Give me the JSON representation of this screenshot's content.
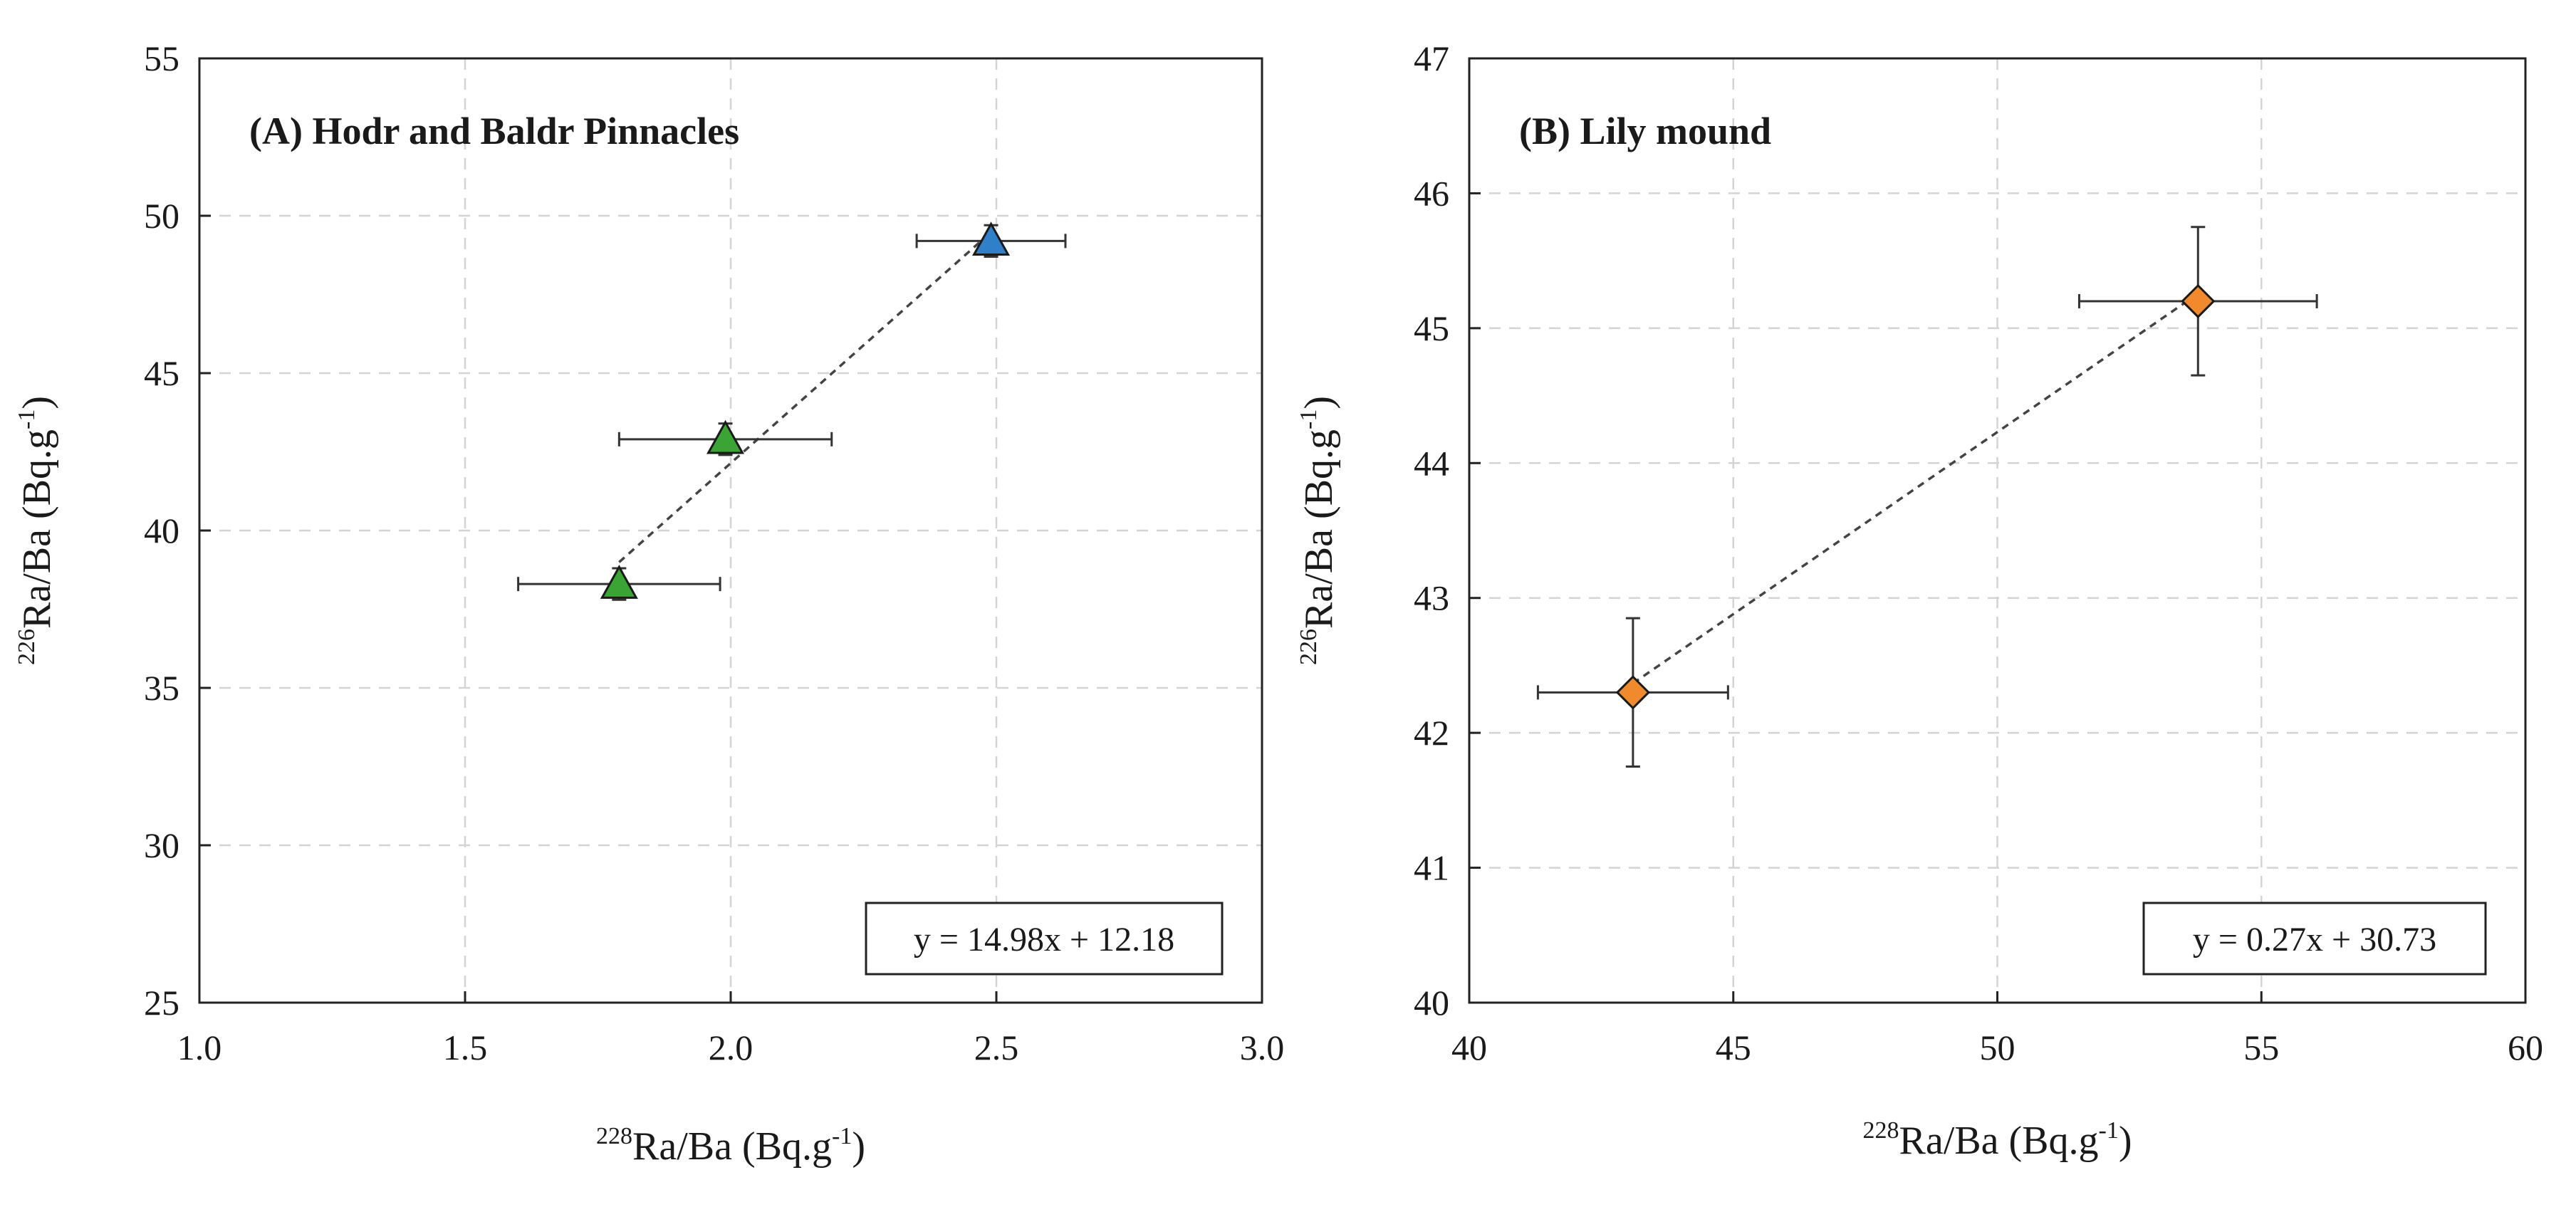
{
  "chart_data": [
    {
      "type": "scatter",
      "title": "(A) Hodr and Baldr Pinnacles",
      "xlabel": {
        "sup": "228",
        "text": "Ra/Ba (Bq.g",
        "exp": "-1",
        "close": ")"
      },
      "ylabel": {
        "sup": "226",
        "text": "Ra/Ba (Bq.g",
        "exp": "-1",
        "close": ")"
      },
      "xlim": [
        1.0,
        3.0
      ],
      "ylim": [
        25,
        55
      ],
      "xticks": [
        "1.0",
        "1.5",
        "2.0",
        "2.5",
        "3.0"
      ],
      "yticks": [
        "25",
        "30",
        "35",
        "40",
        "45",
        "50",
        "55"
      ],
      "grid": true,
      "equation": "y = 14.98x + 12.18",
      "trendline": {
        "slope": 14.98,
        "intercept": 12.18,
        "x_range": [
          1.79,
          2.49
        ]
      },
      "marker": "triangle",
      "points": [
        {
          "x": 1.79,
          "y": 38.3,
          "x_err": 0.19,
          "y_err": 0.5,
          "color": "#3aa535"
        },
        {
          "x": 1.99,
          "y": 42.9,
          "x_err": 0.2,
          "y_err": 0.5,
          "color": "#3aa535"
        },
        {
          "x": 2.49,
          "y": 49.2,
          "x_err": 0.14,
          "y_err": 0.5,
          "color": "#2f7fc9"
        }
      ]
    },
    {
      "type": "scatter",
      "title": "(B) Lily mound",
      "xlabel": {
        "sup": "228",
        "text": "Ra/Ba (Bq.g",
        "exp": "-1",
        "close": ")"
      },
      "ylabel": {
        "sup": "226",
        "text": "Ra/Ba (Bq.g",
        "exp": "-1",
        "close": ")"
      },
      "xlim": [
        40,
        60
      ],
      "ylim": [
        40,
        47
      ],
      "xticks": [
        "40",
        "45",
        "50",
        "55",
        "60"
      ],
      "yticks": [
        "40",
        "41",
        "42",
        "43",
        "44",
        "45",
        "46",
        "47"
      ],
      "grid": true,
      "equation": "y = 0.27x + 30.73",
      "trendline": {
        "slope": 0.27,
        "intercept": 30.73,
        "x_range": [
          43.1,
          53.8
        ]
      },
      "marker": "diamond",
      "points": [
        {
          "x": 43.1,
          "y": 42.3,
          "x_err": 1.8,
          "y_err": 0.55,
          "color": "#f08a2c"
        },
        {
          "x": 53.8,
          "y": 45.2,
          "x_err": 2.25,
          "y_err": 0.55,
          "color": "#f08a2c"
        }
      ]
    }
  ]
}
